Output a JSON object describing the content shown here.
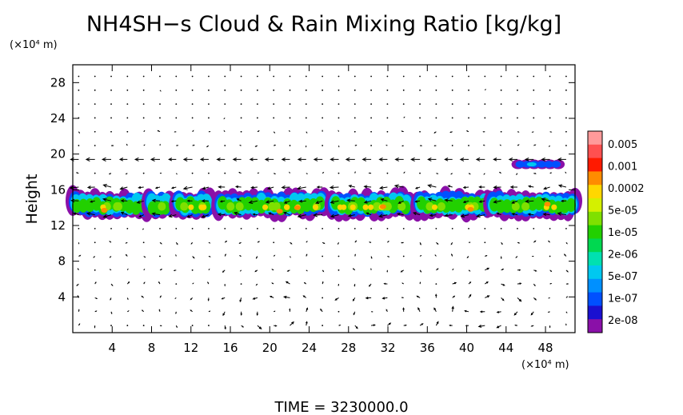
{
  "chart_data": {
    "type": "heatmap",
    "title": "NH4SH−s Cloud & Rain Mixing Ratio [kg/kg]",
    "ylabel": "Height",
    "x_unit_label": "(×10⁴ m)",
    "y_unit_label": "(×10⁴ m)",
    "footer": "TIME  =  3230000.0",
    "xlim": [
      0,
      51
    ],
    "ylim": [
      0,
      30
    ],
    "xticks": [
      "4",
      "8",
      "12",
      "16",
      "20",
      "24",
      "28",
      "32",
      "36",
      "40",
      "44",
      "48"
    ],
    "yticks": [
      "4",
      "8",
      "12",
      "16",
      "20",
      "24",
      "28"
    ],
    "colorbar": {
      "labels": [
        "0.005",
        "0.001",
        "0.0002",
        "5e-05",
        "1e-05",
        "2e-06",
        "5e-07",
        "1e-07",
        "2e-08"
      ],
      "colors": [
        "#ff9a9a",
        "#ff5050",
        "#ff1a00",
        "#ff8c00",
        "#ffd700",
        "#d4f000",
        "#7fe000",
        "#22d000",
        "#00d850",
        "#00e0b0",
        "#00c8f0",
        "#0090ff",
        "#0050ff",
        "#1a10d0",
        "#8a10a8"
      ]
    },
    "cloud_layers": [
      {
        "name": "main_layer",
        "y_range": [
          12.8,
          16.0
        ],
        "x_range": [
          0,
          51
        ]
      },
      {
        "name": "upper_patch",
        "y_range": [
          18.3,
          19.4
        ],
        "x_range": [
          45.2,
          49.3
        ]
      }
    ]
  }
}
